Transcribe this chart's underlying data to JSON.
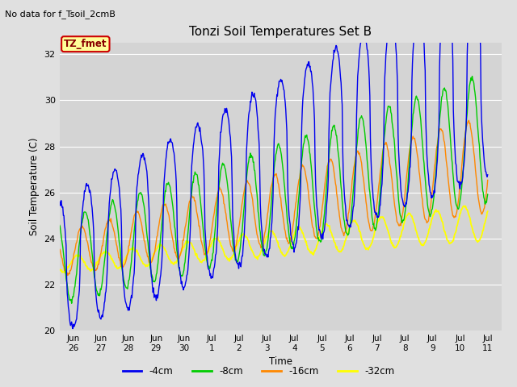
{
  "title": "Tonzi Soil Temperatures Set B",
  "subtitle": "No data for f_Tsoil_2cmB",
  "xlabel": "Time",
  "ylabel": "Soil Temperature (C)",
  "ylim": [
    20,
    32.5
  ],
  "yticks": [
    20,
    22,
    24,
    26,
    28,
    30,
    32
  ],
  "xtick_labels": [
    "Jun\n26",
    "Jun\n27",
    "Jun\n28",
    "Jun\n29",
    "Jun\n30",
    "Jul\n1",
    "Jul\n2",
    "Jul\n3",
    "Jul\n4",
    "Jul\n5",
    "Jul\n6",
    "Jul\n7",
    "Jul\n8",
    "Jul\n9",
    "Jul\n10",
    "Jul\n11"
  ],
  "xtick_positions": [
    1,
    2,
    3,
    4,
    5,
    6,
    7,
    8,
    9,
    10,
    11,
    12,
    13,
    14,
    15,
    16
  ],
  "xlim": [
    0.5,
    16.5
  ],
  "colors_4cm": "#0000EE",
  "colors_8cm": "#00CC00",
  "colors_16cm": "#FF8800",
  "colors_32cm": "#FFFF00",
  "legend_labels": [
    "-4cm",
    "-8cm",
    "-16cm",
    "-32cm"
  ],
  "legend_colors": [
    "#0000EE",
    "#00CC00",
    "#FF8800",
    "#FFFF00"
  ],
  "fig_bg": "#E0E0E0",
  "plot_bg": "#D4D4D4",
  "annotation_text": "TZ_fmet",
  "annotation_bg": "#FFFF99",
  "annotation_border": "#CC0000",
  "annotation_text_color": "#880000",
  "grid_color": "#FFFFFF"
}
